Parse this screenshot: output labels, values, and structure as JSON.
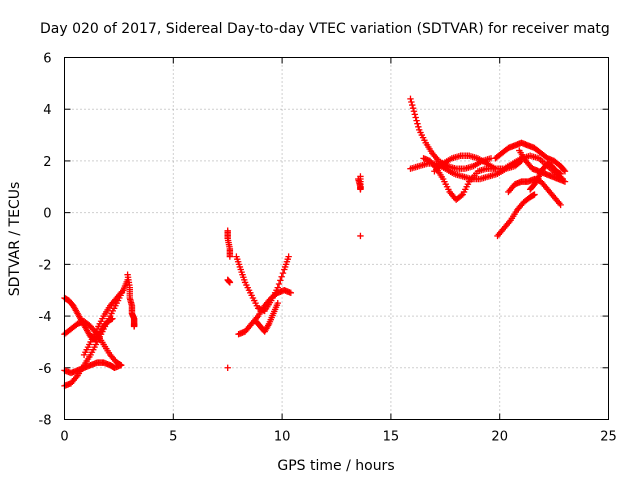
{
  "chart_data": {
    "type": "scatter",
    "title": "Day 020 of 2017, Sidereal Day-to-day VTEC variation (SDTVAR) for receiver matg",
    "xlabel": "GPS time / hours",
    "ylabel": "SDTVAR / TECUs",
    "xlim": [
      0,
      25
    ],
    "ylim": [
      -8,
      6
    ],
    "xticks": [
      "0",
      "5",
      "10",
      "15",
      "20",
      "25"
    ],
    "yticks": [
      "-8",
      "-6",
      "-4",
      "-2",
      "0",
      "2",
      "4",
      "6"
    ],
    "grid": true,
    "marker": "+",
    "color": "#ff0000",
    "series": [
      {
        "name": "seg-a1",
        "x": [
          0.0,
          0.3,
          0.6,
          0.9,
          1.2,
          1.5,
          1.8,
          2.1,
          2.4,
          2.7,
          2.9
        ],
        "y": [
          -6.7,
          -6.6,
          -6.3,
          -5.9,
          -5.5,
          -5.0,
          -4.5,
          -4.0,
          -3.5,
          -3.0,
          -2.6
        ]
      },
      {
        "name": "seg-a2",
        "x": [
          0.0,
          0.3,
          0.6,
          0.9,
          1.2,
          1.5,
          1.8,
          2.1,
          2.4,
          2.6
        ],
        "y": [
          -4.7,
          -4.5,
          -4.3,
          -4.2,
          -4.4,
          -4.7,
          -5.1,
          -5.5,
          -5.8,
          -5.9
        ]
      },
      {
        "name": "seg-a3",
        "x": [
          0.0,
          0.3,
          0.6,
          0.9,
          1.2,
          1.5,
          1.8,
          2.1,
          2.3,
          2.6
        ],
        "y": [
          -6.1,
          -6.2,
          -6.1,
          -6.0,
          -5.9,
          -5.8,
          -5.8,
          -5.9,
          -6.0,
          -5.9
        ]
      },
      {
        "name": "seg-a4",
        "x": [
          0.0,
          0.2,
          0.4,
          0.6,
          0.8,
          1.0,
          1.2,
          1.4,
          1.6,
          1.8,
          2.0,
          2.2
        ],
        "y": [
          -3.3,
          -3.4,
          -3.6,
          -3.9,
          -4.2,
          -4.5,
          -4.8,
          -4.9,
          -4.7,
          -4.4,
          -4.2,
          -4.1
        ]
      },
      {
        "name": "seg-a5",
        "x": [
          0.9,
          1.2,
          1.5,
          1.8,
          2.1,
          2.4,
          2.7
        ],
        "y": [
          -5.5,
          -5.0,
          -4.5,
          -4.0,
          -3.6,
          -3.3,
          -3.0
        ]
      },
      {
        "name": "seg-a6",
        "x": [
          2.9,
          3.0,
          3.0,
          3.1,
          3.1,
          3.2,
          3.2,
          3.2
        ],
        "y": [
          -2.4,
          -2.9,
          -3.3,
          -3.6,
          -3.9,
          -4.1,
          -4.3,
          -4.4
        ]
      },
      {
        "name": "seg-b1",
        "x": [
          7.5,
          7.5,
          7.6,
          7.6
        ],
        "y": [
          -0.7,
          -1.0,
          -1.4,
          -1.7
        ]
      },
      {
        "name": "seg-b2",
        "x": [
          7.5,
          7.6
        ],
        "y": [
          -2.6,
          -2.7
        ]
      },
      {
        "name": "seg-b3",
        "x": [
          7.5
        ],
        "y": [
          -6.0
        ]
      },
      {
        "name": "seg-b4",
        "x": [
          7.9,
          8.1,
          8.3,
          8.6,
          8.9,
          9.2,
          9.5,
          9.8,
          10.1,
          10.3
        ],
        "y": [
          -1.7,
          -2.2,
          -2.7,
          -3.2,
          -3.7,
          -3.8,
          -3.4,
          -2.9,
          -2.2,
          -1.7
        ]
      },
      {
        "name": "seg-b5",
        "x": [
          8.0,
          8.3,
          8.6,
          8.9,
          9.2,
          9.5,
          9.8,
          10.1,
          10.4
        ],
        "y": [
          -4.7,
          -4.6,
          -4.3,
          -4.0,
          -3.6,
          -3.3,
          -3.1,
          -3.0,
          -3.1
        ]
      },
      {
        "name": "seg-b6",
        "x": [
          8.8,
          9.0,
          9.2,
          9.4,
          9.6,
          9.8
        ],
        "y": [
          -4.2,
          -4.4,
          -4.6,
          -4.3,
          -3.9,
          -3.5
        ]
      },
      {
        "name": "seg-c1",
        "x": [
          13.5,
          13.6,
          13.6,
          13.6
        ],
        "y": [
          1.3,
          1.0,
          0.9,
          1.4
        ]
      },
      {
        "name": "seg-c2",
        "x": [
          13.6
        ],
        "y": [
          -0.9
        ]
      },
      {
        "name": "seg-d1",
        "x": [
          15.9,
          16.1,
          16.3,
          16.6,
          16.9,
          17.2,
          17.6,
          18.0,
          18.4,
          18.8,
          19.2,
          19.6
        ],
        "y": [
          4.4,
          3.8,
          3.2,
          2.7,
          2.3,
          2.0,
          1.8,
          1.7,
          1.7,
          1.8,
          2.0,
          2.1
        ]
      },
      {
        "name": "seg-d2",
        "x": [
          15.9,
          16.3,
          16.7,
          17.1,
          17.5,
          17.9,
          18.3,
          18.7,
          19.1,
          19.5,
          19.9,
          20.3,
          20.7,
          21.0
        ],
        "y": [
          1.7,
          1.8,
          1.9,
          1.9,
          1.7,
          1.5,
          1.4,
          1.3,
          1.3,
          1.4,
          1.5,
          1.7,
          1.8,
          2.0
        ]
      },
      {
        "name": "seg-d3",
        "x": [
          16.5,
          16.8,
          17.1,
          17.4,
          17.7,
          18.0,
          18.3,
          18.6,
          19.0,
          19.4,
          19.8
        ],
        "y": [
          2.1,
          2.0,
          1.7,
          1.3,
          0.8,
          0.5,
          0.7,
          1.2,
          1.6,
          1.7,
          1.7
        ]
      },
      {
        "name": "seg-d4",
        "x": [
          17.0,
          17.4,
          17.8,
          18.2,
          18.6,
          19.0,
          19.4,
          19.8,
          20.2,
          20.6,
          21.0,
          21.4,
          21.8,
          22.2,
          22.6,
          22.9
        ],
        "y": [
          1.6,
          1.9,
          2.1,
          2.2,
          2.2,
          2.1,
          1.9,
          1.7,
          1.7,
          1.9,
          2.1,
          2.2,
          2.1,
          1.8,
          1.5,
          1.3
        ]
      },
      {
        "name": "seg-d5",
        "x": [
          19.8,
          20.1,
          20.4,
          20.7,
          21.0,
          21.3,
          21.6,
          21.9,
          22.2,
          22.5,
          22.8,
          23.0
        ],
        "y": [
          2.1,
          2.3,
          2.5,
          2.6,
          2.7,
          2.6,
          2.5,
          2.3,
          2.1,
          2.0,
          1.8,
          1.6
        ]
      },
      {
        "name": "seg-d6",
        "x": [
          19.9,
          20.2,
          20.5,
          20.8,
          21.1,
          21.4,
          21.6
        ],
        "y": [
          -0.9,
          -0.6,
          -0.3,
          0.1,
          0.4,
          0.6,
          0.7
        ]
      },
      {
        "name": "seg-d7",
        "x": [
          20.4,
          20.7,
          21.0,
          21.3,
          21.6,
          21.9,
          22.2,
          22.5,
          22.8
        ],
        "y": [
          0.8,
          1.1,
          1.2,
          1.2,
          1.3,
          1.2,
          0.9,
          0.6,
          0.3
        ]
      },
      {
        "name": "seg-d8",
        "x": [
          20.9,
          21.2,
          21.5,
          21.8,
          22.1,
          22.4,
          22.7,
          23.0
        ],
        "y": [
          2.4,
          2.0,
          1.7,
          1.6,
          1.5,
          1.4,
          1.3,
          1.2
        ]
      },
      {
        "name": "seg-d9",
        "x": [
          21.4,
          21.6,
          21.8,
          22.0,
          22.2,
          22.4,
          22.6,
          22.8
        ],
        "y": [
          0.9,
          1.1,
          1.4,
          1.7,
          1.9,
          1.8,
          1.6,
          1.5
        ]
      }
    ]
  }
}
